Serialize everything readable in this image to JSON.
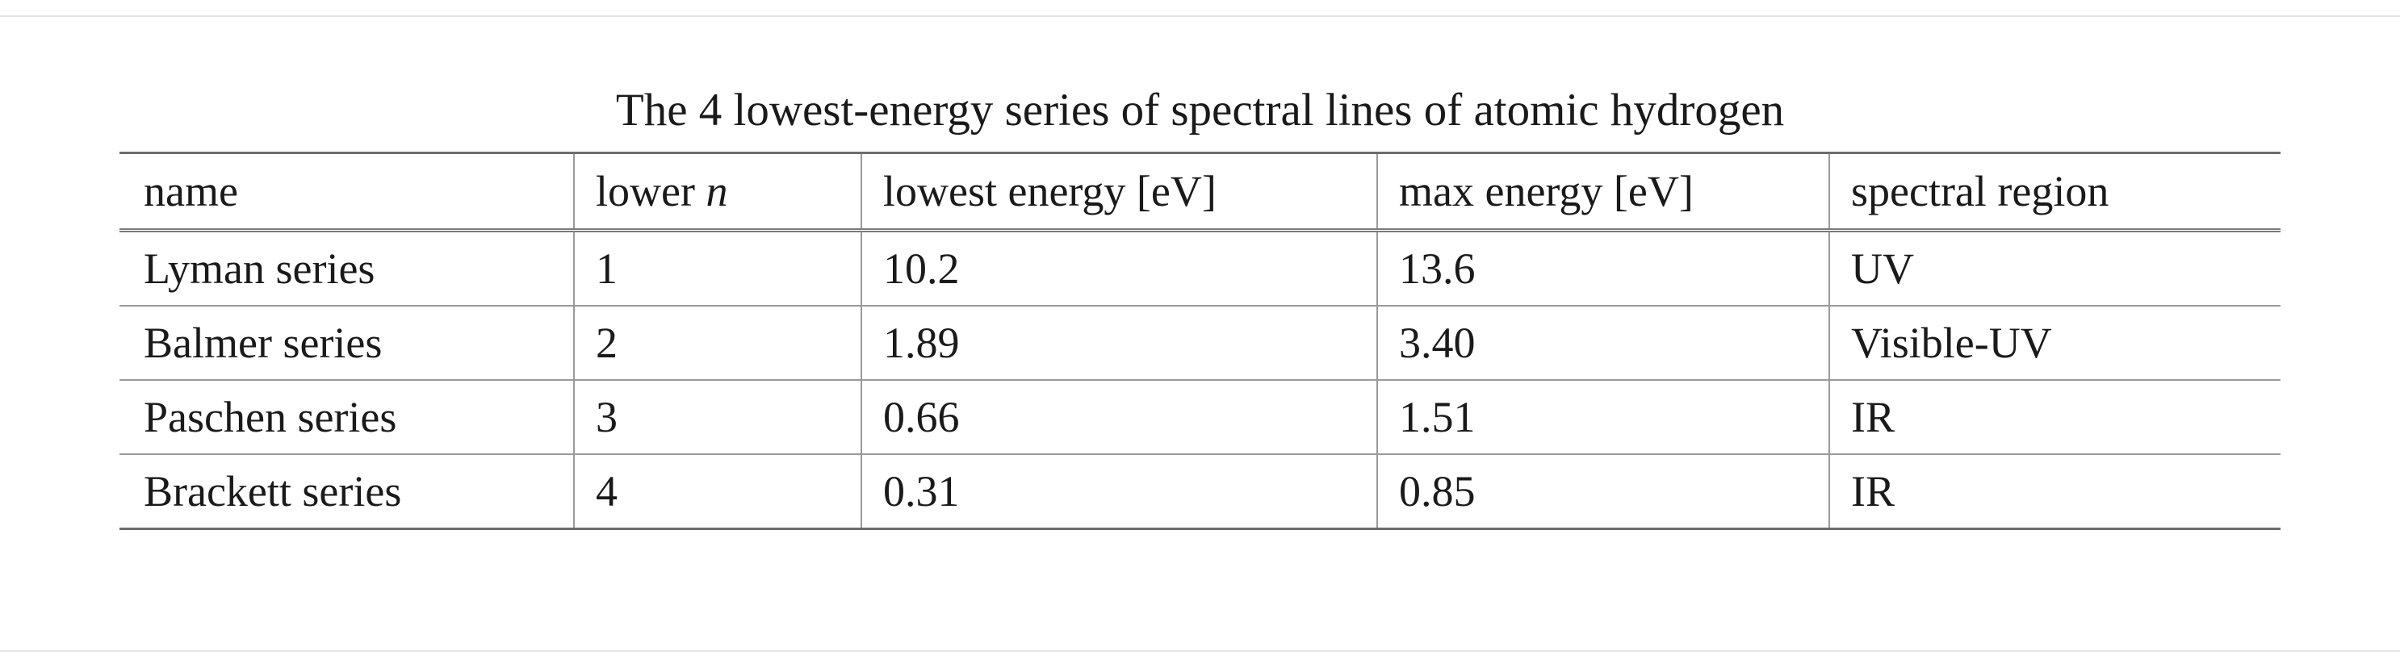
{
  "table": {
    "title": "The 4 lowest-energy series of spectral lines of atomic hydrogen",
    "header": [
      "name",
      {
        "text": "lower",
        "italic": "n"
      },
      "lowest energy [eV]",
      "max energy [eV]",
      "spectral region"
    ],
    "rows": [
      [
        "Lyman series",
        "1",
        "10.2",
        "13.6",
        "UV"
      ],
      [
        "Balmer series",
        "2",
        "1.89",
        "3.40",
        "Visible-UV"
      ],
      [
        "Paschen series",
        "3",
        "0.66",
        "1.51",
        "IR"
      ],
      [
        "Brackett series",
        "4",
        "0.31",
        "0.85",
        "IR"
      ]
    ]
  }
}
